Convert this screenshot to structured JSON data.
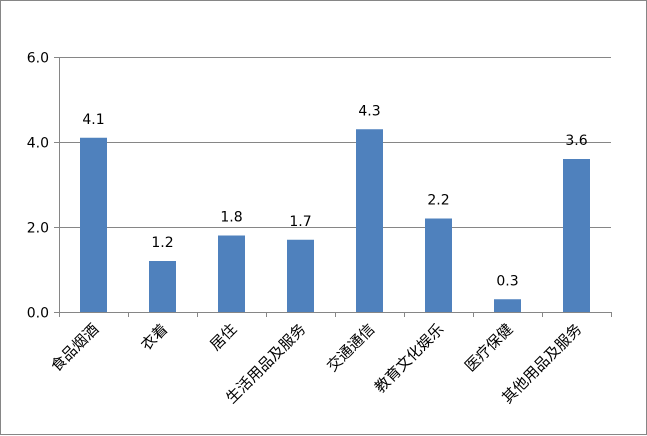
{
  "chart_data": {
    "type": "bar",
    "categories": [
      "食品烟酒",
      "衣着",
      "居住",
      "生活用品及服务",
      "交通通信",
      "教育文化娱乐",
      "医疗保健",
      "其他用品及服务"
    ],
    "values": [
      4.1,
      1.2,
      1.8,
      1.7,
      4.3,
      2.2,
      0.3,
      3.6
    ],
    "data_labels": [
      "4.1",
      "1.2",
      "1.8",
      "1.7",
      "4.3",
      "2.2",
      "0.3",
      "3.6"
    ],
    "yticks": [
      "0.0",
      "2.0",
      "4.0",
      "6.0"
    ],
    "ytick_values": [
      0,
      2,
      4,
      6
    ],
    "ylim": [
      0,
      6
    ],
    "grid": true,
    "legend": "none",
    "colors": {
      "bar": "#4F81BD",
      "grid": "#868686",
      "axis": "#868686",
      "frame": "#868686"
    }
  }
}
